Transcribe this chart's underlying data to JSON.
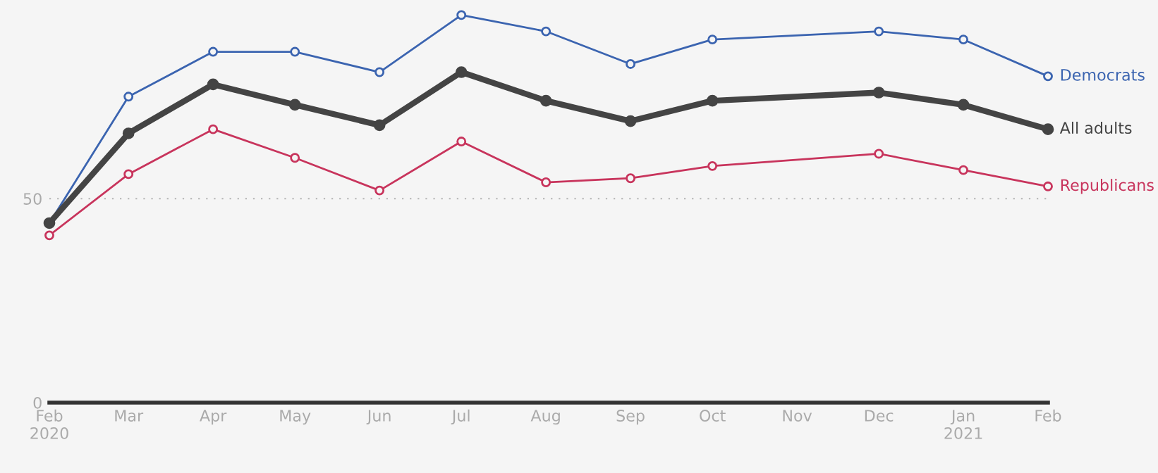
{
  "chart_data": {
    "type": "line",
    "x": [
      "2020-02",
      "2020-03",
      "2020-04",
      "2020-05",
      "2020-06",
      "2020-07",
      "2020-08",
      "2020-09",
      "2020-10",
      "2020-12",
      "2021-01",
      "2021-02"
    ],
    "series": [
      {
        "name": "Democrats",
        "color": "#3b64b0",
        "values": [
          44,
          75,
          86,
          86,
          81,
          95,
          91,
          83,
          89,
          91,
          89,
          80
        ]
      },
      {
        "name": "All adults",
        "color": "#444444",
        "values": [
          44,
          66,
          78,
          73,
          68,
          81,
          74,
          69,
          74,
          76,
          73,
          67
        ]
      },
      {
        "name": "Republicans",
        "color": "#c8345c",
        "values": [
          41,
          56,
          67,
          60,
          52,
          64,
          54,
          55,
          58,
          61,
          57,
          53
        ]
      }
    ],
    "xlim": [
      "2020-02",
      "2021-02"
    ],
    "xticks": [
      {
        "value": "2020-02",
        "label": "Feb\n2020"
      },
      {
        "value": "2020-03",
        "label": "Mar"
      },
      {
        "value": "2020-04",
        "label": "Apr"
      },
      {
        "value": "2020-05",
        "label": "May"
      },
      {
        "value": "2020-06",
        "label": "Jun"
      },
      {
        "value": "2020-07",
        "label": "Jul"
      },
      {
        "value": "2020-08",
        "label": "Aug"
      },
      {
        "value": "2020-09",
        "label": "Sep"
      },
      {
        "value": "2020-10",
        "label": "Oct"
      },
      {
        "value": "2020-11",
        "label": "Nov"
      },
      {
        "value": "2020-12",
        "label": "Dec"
      },
      {
        "value": "2021-01",
        "label": "Jan\n2021"
      },
      {
        "value": "2021-02",
        "label": "Feb"
      }
    ],
    "ylim": [
      0,
      98
    ],
    "yticks": [
      0,
      50
    ],
    "grid": "y",
    "legend": false,
    "marker": "circle",
    "line_style": "solid"
  }
}
